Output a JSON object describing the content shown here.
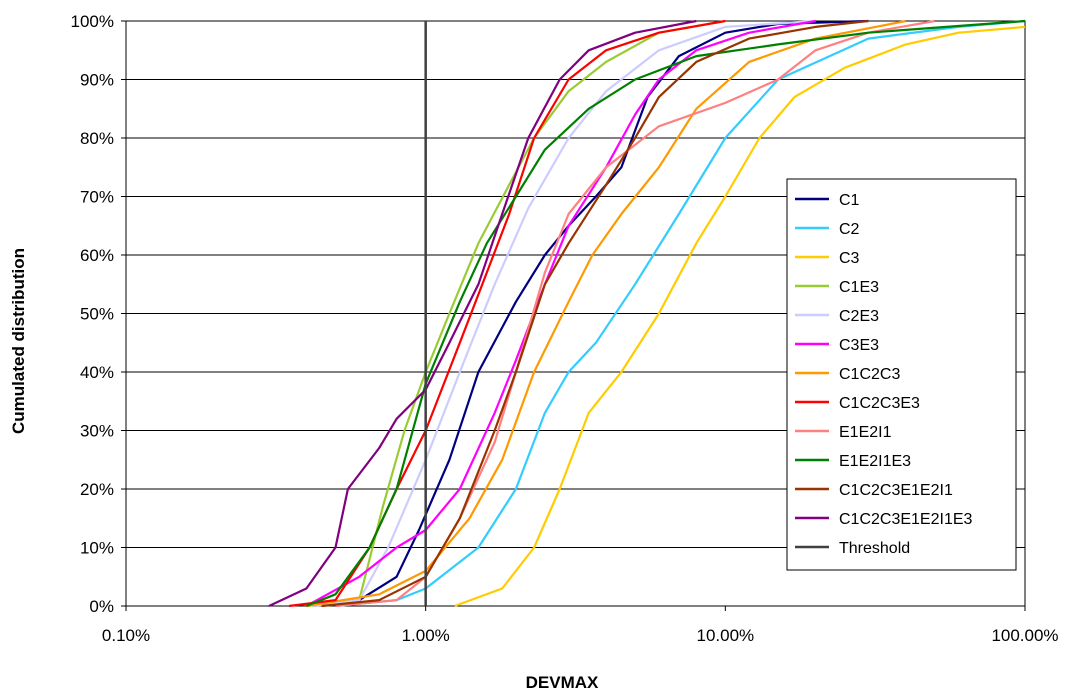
{
  "chart_data": {
    "type": "line",
    "title": "",
    "xlabel": "DEVMAX",
    "ylabel": "Cumulated distribution",
    "x_scale": "log",
    "x_unit": "percent",
    "xlim": [
      0.1,
      100
    ],
    "ylim": [
      0,
      100
    ],
    "x_tick_values": [
      0.1,
      1,
      10,
      100
    ],
    "x_tick_labels": [
      "0.10%",
      "1.00%",
      "10.00%",
      "100.00%"
    ],
    "y_tick_values": [
      0,
      10,
      20,
      30,
      40,
      50,
      60,
      70,
      80,
      90,
      100
    ],
    "y_tick_labels": [
      "0%",
      "10%",
      "20%",
      "30%",
      "40%",
      "50%",
      "60%",
      "70%",
      "80%",
      "90%",
      "100%"
    ],
    "grid": "horizontal",
    "legend_position": "right",
    "threshold": {
      "name": "Threshold",
      "x": 1.0,
      "color": "#404040"
    },
    "series": [
      {
        "name": "C1",
        "color": "#000080",
        "points": [
          [
            0.42,
            0
          ],
          [
            0.6,
            1
          ],
          [
            0.8,
            5
          ],
          [
            0.95,
            13
          ],
          [
            1.2,
            25
          ],
          [
            1.5,
            40
          ],
          [
            2.0,
            52
          ],
          [
            2.5,
            60
          ],
          [
            3.0,
            65
          ],
          [
            3.7,
            70
          ],
          [
            4.5,
            75
          ],
          [
            5.5,
            87
          ],
          [
            7.0,
            94
          ],
          [
            10,
            98
          ],
          [
            15,
            99.5
          ],
          [
            30,
            100
          ]
        ]
      },
      {
        "name": "C2",
        "color": "#33CCFF",
        "points": [
          [
            0.5,
            0
          ],
          [
            0.8,
            1
          ],
          [
            1.0,
            3
          ],
          [
            1.5,
            10
          ],
          [
            2.0,
            20
          ],
          [
            2.5,
            33
          ],
          [
            3.0,
            40
          ],
          [
            3.7,
            45
          ],
          [
            5.0,
            55
          ],
          [
            7.0,
            67
          ],
          [
            10,
            80
          ],
          [
            15,
            90
          ],
          [
            30,
            97
          ],
          [
            60,
            99
          ],
          [
            100,
            100
          ]
        ]
      },
      {
        "name": "C3",
        "color": "#FFCC00",
        "points": [
          [
            1.25,
            0
          ],
          [
            1.8,
            3
          ],
          [
            2.3,
            10
          ],
          [
            2.8,
            20
          ],
          [
            3.5,
            33
          ],
          [
            4.5,
            40
          ],
          [
            6.0,
            50
          ],
          [
            8.0,
            62
          ],
          [
            10,
            70
          ],
          [
            13,
            80
          ],
          [
            17,
            87
          ],
          [
            25,
            92
          ],
          [
            40,
            96
          ],
          [
            60,
            98
          ],
          [
            100,
            99
          ]
        ]
      },
      {
        "name": "C1E3",
        "color": "#99CC33",
        "points": [
          [
            0.4,
            0
          ],
          [
            0.6,
            1
          ],
          [
            0.72,
            17
          ],
          [
            0.85,
            30
          ],
          [
            1.0,
            40
          ],
          [
            1.2,
            50
          ],
          [
            1.5,
            62
          ],
          [
            1.9,
            72
          ],
          [
            2.3,
            80
          ],
          [
            3.0,
            88
          ],
          [
            4.0,
            93
          ],
          [
            6.0,
            98
          ],
          [
            10,
            100
          ]
        ]
      },
      {
        "name": "C2E3",
        "color": "#CCCCFF",
        "points": [
          [
            0.42,
            0
          ],
          [
            0.6,
            1
          ],
          [
            0.75,
            10
          ],
          [
            1.0,
            25
          ],
          [
            1.3,
            40
          ],
          [
            1.7,
            55
          ],
          [
            2.2,
            68
          ],
          [
            3.0,
            80
          ],
          [
            4.0,
            88
          ],
          [
            6.0,
            95
          ],
          [
            10,
            99
          ],
          [
            20,
            100
          ]
        ]
      },
      {
        "name": "C3E3",
        "color": "#FF00FF",
        "points": [
          [
            0.4,
            0
          ],
          [
            0.6,
            5
          ],
          [
            0.8,
            10
          ],
          [
            1.0,
            13
          ],
          [
            1.3,
            20
          ],
          [
            1.7,
            33
          ],
          [
            2.0,
            42
          ],
          [
            2.5,
            55
          ],
          [
            3.0,
            65
          ],
          [
            4.0,
            75
          ],
          [
            5.0,
            84
          ],
          [
            6.0,
            90
          ],
          [
            8.0,
            95
          ],
          [
            12,
            98
          ],
          [
            20,
            100
          ]
        ]
      },
      {
        "name": "C1C2C3",
        "color": "#FF9900",
        "points": [
          [
            0.4,
            0
          ],
          [
            0.7,
            2
          ],
          [
            1.0,
            6
          ],
          [
            1.4,
            15
          ],
          [
            1.8,
            25
          ],
          [
            2.3,
            40
          ],
          [
            3.0,
            52
          ],
          [
            3.6,
            60
          ],
          [
            4.5,
            67
          ],
          [
            6.0,
            75
          ],
          [
            8.0,
            85
          ],
          [
            12,
            93
          ],
          [
            20,
            97
          ],
          [
            40,
            100
          ]
        ]
      },
      {
        "name": "C1C2C3E3",
        "color": "#FF0000",
        "points": [
          [
            0.35,
            0
          ],
          [
            0.5,
            1
          ],
          [
            0.65,
            10
          ],
          [
            0.8,
            20
          ],
          [
            1.0,
            30
          ],
          [
            1.3,
            45
          ],
          [
            1.6,
            57
          ],
          [
            1.9,
            67
          ],
          [
            2.3,
            80
          ],
          [
            3.0,
            90
          ],
          [
            4.0,
            95
          ],
          [
            6.0,
            98
          ],
          [
            10,
            100
          ]
        ]
      },
      {
        "name": "E1E2I1",
        "color": "#FF8080",
        "points": [
          [
            0.5,
            0
          ],
          [
            0.8,
            1
          ],
          [
            1.0,
            5
          ],
          [
            1.3,
            15
          ],
          [
            1.7,
            28
          ],
          [
            2.0,
            40
          ],
          [
            2.5,
            57
          ],
          [
            3.0,
            67
          ],
          [
            4.0,
            75
          ],
          [
            6.0,
            82
          ],
          [
            10,
            86
          ],
          [
            15,
            90
          ],
          [
            20,
            95
          ],
          [
            30,
            98
          ],
          [
            50,
            100
          ]
        ]
      },
      {
        "name": "E1E2I1E3",
        "color": "#008000",
        "points": [
          [
            0.4,
            0
          ],
          [
            0.5,
            2
          ],
          [
            0.65,
            10
          ],
          [
            0.8,
            20
          ],
          [
            1.0,
            38
          ],
          [
            1.3,
            52
          ],
          [
            1.6,
            62
          ],
          [
            2.0,
            70
          ],
          [
            2.5,
            78
          ],
          [
            3.5,
            85
          ],
          [
            5.0,
            90
          ],
          [
            8.0,
            94
          ],
          [
            15,
            96
          ],
          [
            30,
            98
          ],
          [
            100,
            100
          ]
        ]
      },
      {
        "name": "C1C2C3E1E2I1",
        "color": "#993300",
        "points": [
          [
            0.45,
            0
          ],
          [
            0.7,
            1
          ],
          [
            1.0,
            5
          ],
          [
            1.3,
            15
          ],
          [
            1.7,
            30
          ],
          [
            2.0,
            40
          ],
          [
            2.5,
            55
          ],
          [
            3.0,
            62
          ],
          [
            4.0,
            72
          ],
          [
            5.0,
            80
          ],
          [
            6.0,
            87
          ],
          [
            8.0,
            93
          ],
          [
            12,
            97
          ],
          [
            20,
            99
          ],
          [
            30,
            100
          ]
        ]
      },
      {
        "name": "C1C2C3E1E2I1E3",
        "color": "#800080",
        "points": [
          [
            0.3,
            0
          ],
          [
            0.4,
            3
          ],
          [
            0.5,
            10
          ],
          [
            0.55,
            20
          ],
          [
            0.7,
            27
          ],
          [
            0.8,
            32
          ],
          [
            1.0,
            37
          ],
          [
            1.2,
            45
          ],
          [
            1.5,
            55
          ],
          [
            1.8,
            67
          ],
          [
            2.2,
            80
          ],
          [
            2.8,
            90
          ],
          [
            3.5,
            95
          ],
          [
            5.0,
            98
          ],
          [
            8.0,
            100
          ]
        ]
      }
    ]
  }
}
